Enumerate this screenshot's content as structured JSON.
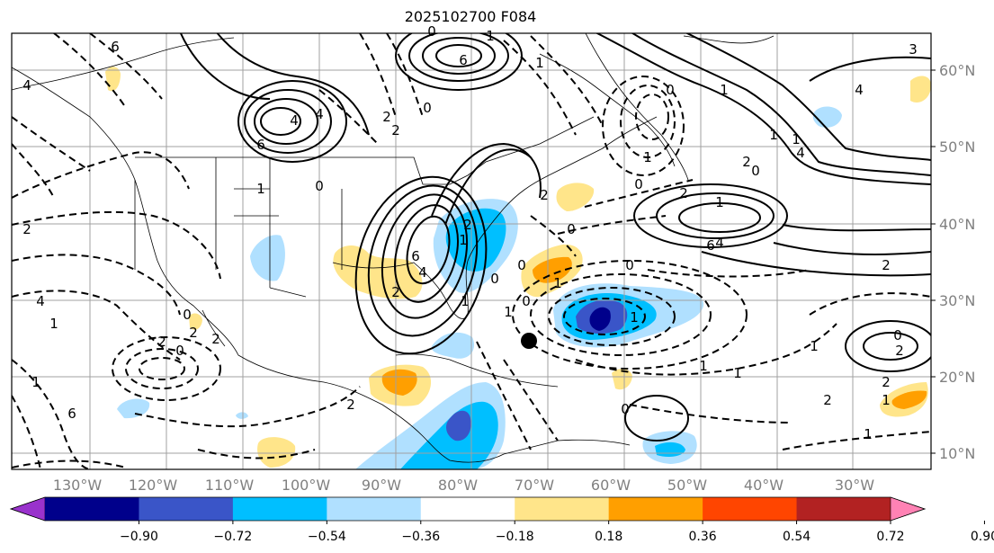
{
  "title": "2025102700 F084",
  "lon_labels": [
    "130°W",
    "120°W",
    "110°W",
    "100°W",
    "90°W",
    "80°W",
    "70°W",
    "60°W",
    "50°W",
    "40°W",
    "30°W"
  ],
  "lat_labels": [
    "60°N",
    "50°N",
    "40°N",
    "30°N",
    "20°N",
    "10°N"
  ],
  "colorbar": {
    "ticks": [
      "−0.90",
      "−0.72",
      "−0.54",
      "−0.36",
      "−0.18",
      "0.18",
      "0.36",
      "0.54",
      "0.72",
      "0.90"
    ],
    "colors": [
      "#9932cc",
      "#00008b",
      "#3a55c8",
      "#00bfff",
      "#b0e0ff",
      "#ffffff",
      "#ffe58a",
      "#ff9f00",
      "#ff4500",
      "#b22222",
      "#ff82b4"
    ]
  },
  "contour_labels": [
    "6",
    "4",
    "6",
    "4",
    "2",
    "2",
    "1",
    "0",
    "1",
    "2",
    "4",
    "6",
    "2",
    "1",
    "0",
    "1",
    "2",
    "2",
    "1",
    "0",
    "2",
    "4",
    "6",
    "4",
    "2",
    "1",
    "0",
    "1",
    "2",
    "2",
    "0",
    "1",
    "0",
    "1",
    "2",
    "0",
    "6",
    "0",
    "1",
    "0",
    "0",
    "1",
    "2",
    "1",
    "4",
    "4",
    "1",
    "1",
    "3",
    "4",
    "0",
    "1",
    "6",
    "1",
    "0",
    "2",
    "1",
    "1",
    "2",
    "2",
    "0",
    "1",
    "0",
    "0",
    "1",
    "2"
  ],
  "marker": "storm-center"
}
